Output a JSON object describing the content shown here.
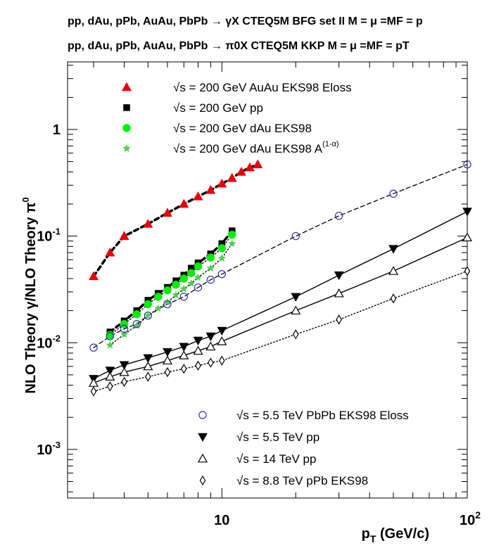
{
  "header": {
    "line1": "pp, dAu, pPb, AuAu, PbPb → γX CTEQ5M BFG set II M = μ =MF = p",
    "line2": "pp, dAu, pPb, AuAu, PbPb → π0X CTEQ5M KKP M = μ =MF = pT"
  },
  "chart_data": {
    "type": "scatter",
    "title": "",
    "xlabel": "pT (GeV/c)",
    "ylabel": "NLO Theory γ/NLO Theory π0",
    "xscale": "log",
    "yscale": "log",
    "xlim": [
      2.35,
      100
    ],
    "ylim": [
      0.00035,
      4.3
    ],
    "x_ticks": [
      {
        "value": 10,
        "label": "10"
      },
      {
        "value": 100,
        "label": "10^2"
      }
    ],
    "y_ticks": [
      {
        "value": 0.001,
        "label": "10^-3"
      },
      {
        "value": 0.01,
        "label": "10^-2"
      },
      {
        "value": 0.1,
        "label": "10^-1"
      },
      {
        "value": 1,
        "label": "1"
      }
    ],
    "grid": false,
    "legend": [
      {
        "position": "top-left",
        "entries": [
          0,
          1,
          2,
          3
        ]
      },
      {
        "position": "bottom-right",
        "entries": [
          4,
          5,
          6,
          7
        ]
      }
    ],
    "series": [
      {
        "name": "√s = 200 GeV AuAu EKS98 Eloss",
        "color": "#e8000b",
        "marker": "triangle-up",
        "line": "dashed-thick",
        "x": [
          3,
          3.5,
          4,
          5,
          6,
          7,
          8,
          9,
          10,
          11,
          12,
          13,
          14
        ],
        "y": [
          0.042,
          0.07,
          0.1,
          0.13,
          0.165,
          0.2,
          0.235,
          0.27,
          0.31,
          0.35,
          0.4,
          0.44,
          0.47
        ]
      },
      {
        "name": "√s = 200 GeV pp",
        "color": "#000000",
        "marker": "square",
        "line": "dashed-thick",
        "x": [
          3.5,
          4,
          4.5,
          5,
          5.5,
          6,
          6.5,
          7,
          7.5,
          8,
          9,
          10,
          11
        ],
        "y": [
          0.0126,
          0.016,
          0.02,
          0.025,
          0.029,
          0.033,
          0.038,
          0.043,
          0.05,
          0.056,
          0.068,
          0.085,
          0.112
        ]
      },
      {
        "name": "√s = 200 GeV dAu EKS98",
        "color": "#00ee00",
        "marker": "circle",
        "line": "dotted",
        "x": [
          3.5,
          4,
          4.5,
          5,
          5.5,
          6,
          6.5,
          7,
          7.5,
          8,
          9,
          10,
          11
        ],
        "y": [
          0.0118,
          0.015,
          0.0185,
          0.023,
          0.027,
          0.031,
          0.035,
          0.04,
          0.045,
          0.052,
          0.063,
          0.077,
          0.103
        ]
      },
      {
        "name": "√s = 200 GeV dAu EKS98 A^(1-α)",
        "color": "#4fcf4f",
        "marker": "star",
        "line": "dotted",
        "x": [
          3.5,
          4,
          4.5,
          5,
          5.5,
          6,
          6.5,
          7,
          7.5,
          8,
          9,
          10,
          11
        ],
        "y": [
          0.0095,
          0.012,
          0.0145,
          0.018,
          0.021,
          0.024,
          0.028,
          0.032,
          0.036,
          0.041,
          0.05,
          0.062,
          0.085
        ]
      },
      {
        "name": "√s = 5.5 TeV PbPb EKS98 Eloss",
        "color": "#3333aa",
        "marker": "circle-open",
        "line": "dashed",
        "x": [
          3,
          3.5,
          4,
          4.5,
          5,
          6,
          7,
          8,
          9,
          10,
          20,
          30,
          50,
          100
        ],
        "y": [
          0.009,
          0.0115,
          0.0135,
          0.015,
          0.018,
          0.023,
          0.027,
          0.033,
          0.039,
          0.044,
          0.1,
          0.155,
          0.25,
          0.47
        ]
      },
      {
        "name": "√s = 5.5 TeV pp",
        "color": "#000000",
        "marker": "triangle-down",
        "line": "solid",
        "x": [
          3,
          3.5,
          4,
          5,
          6,
          7,
          8,
          9,
          10,
          20,
          30,
          50,
          100
        ],
        "y": [
          0.0046,
          0.0055,
          0.0062,
          0.0072,
          0.0082,
          0.0092,
          0.0105,
          0.0115,
          0.013,
          0.027,
          0.043,
          0.076,
          0.17
        ]
      },
      {
        "name": "√s = 14 TeV pp",
        "color": "#000000",
        "marker": "triangle-up-open",
        "line": "solid",
        "x": [
          3,
          3.5,
          4,
          5,
          6,
          7,
          8,
          9,
          10,
          20,
          30,
          50,
          100
        ],
        "y": [
          0.0042,
          0.0048,
          0.0053,
          0.006,
          0.0068,
          0.0076,
          0.0084,
          0.0092,
          0.0103,
          0.02,
          0.029,
          0.047,
          0.097
        ]
      },
      {
        "name": "√s = 8.8 TeV pPb EKS98",
        "color": "#000000",
        "marker": "diamond-open",
        "line": "dotted",
        "x": [
          3,
          3.5,
          4,
          5,
          6,
          7,
          8,
          9,
          10,
          20,
          30,
          50,
          100
        ],
        "y": [
          0.0035,
          0.0039,
          0.0043,
          0.0048,
          0.0053,
          0.0057,
          0.0061,
          0.0065,
          0.0068,
          0.012,
          0.0165,
          0.026,
          0.047
        ]
      }
    ]
  }
}
